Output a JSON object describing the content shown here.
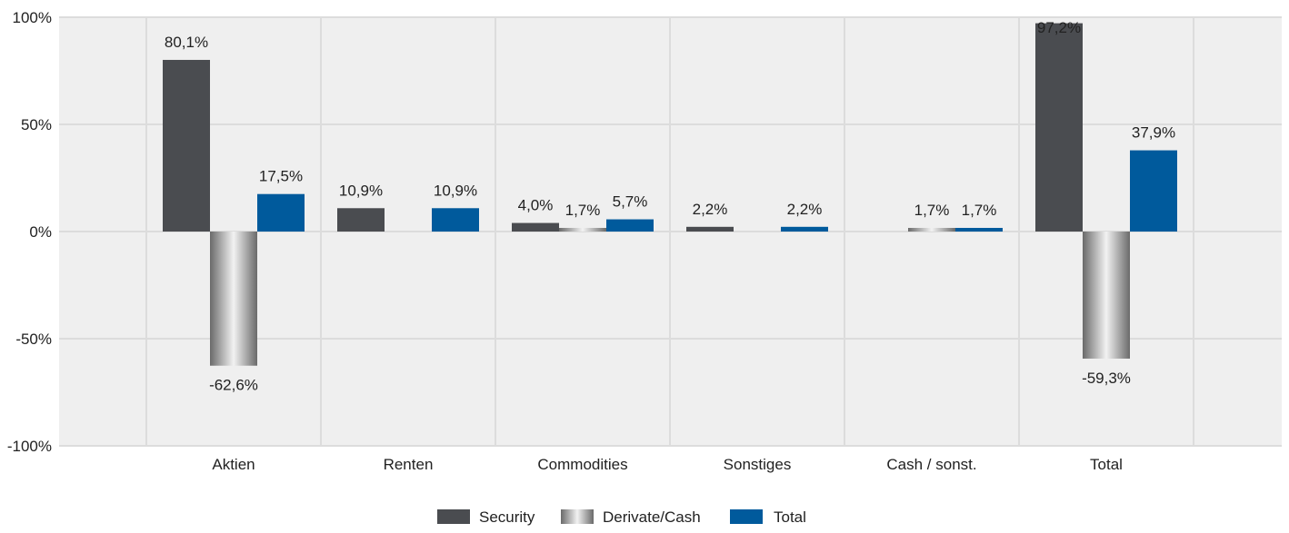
{
  "chart_data": {
    "type": "bar",
    "categories": [
      "Aktien",
      "Renten",
      "Commodities",
      "Sonstiges",
      "Cash / sonst.",
      "Total"
    ],
    "series": [
      {
        "name": "Security",
        "values": [
          80.1,
          10.9,
          4.0,
          2.2,
          null,
          97.2
        ],
        "labels": [
          "80,1%",
          "10,9%",
          "4,0%",
          "2,2%",
          "",
          "97,2%"
        ],
        "color": "#4a4c50"
      },
      {
        "name": "Derivate/Cash",
        "values": [
          -62.6,
          null,
          1.7,
          null,
          1.7,
          -59.3
        ],
        "labels": [
          "-62,6%",
          "",
          "1,7%",
          "",
          "1,7%",
          "-59,3%"
        ],
        "color": "#9a9a9a"
      },
      {
        "name": "Total",
        "values": [
          17.5,
          10.9,
          5.7,
          2.2,
          1.7,
          37.9
        ],
        "labels": [
          "17,5%",
          "10,9%",
          "5,7%",
          "2,2%",
          "1,7%",
          "37,9%"
        ],
        "color": "#005a9c"
      }
    ],
    "ylim": [
      -100,
      100
    ],
    "yticks": [
      100,
      50,
      0,
      -50,
      -100
    ],
    "ytick_labels": [
      "100%",
      "50%",
      "0%",
      "-50%",
      "-100%"
    ],
    "grid": true,
    "legend_position": "bottom",
    "plot_background": "#efefef",
    "grid_color": "#dcdcdc"
  }
}
